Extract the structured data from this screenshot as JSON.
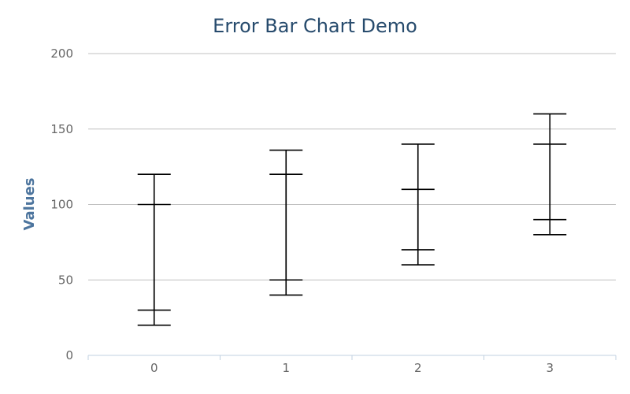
{
  "chart_data": {
    "type": "errorbar",
    "title": "Error Bar Chart Demo",
    "xlabel": "",
    "ylabel": "Values",
    "categories": [
      "0",
      "1",
      "2",
      "3"
    ],
    "ylim": [
      0,
      200
    ],
    "yticks": [
      0,
      50,
      100,
      150,
      200
    ],
    "grid": true,
    "legend": "none",
    "series": [
      {
        "low": [
          20,
          40,
          60,
          80
        ],
        "high": [
          120,
          136,
          140,
          160
        ]
      },
      {
        "low": [
          30,
          50,
          70,
          90
        ],
        "high": [
          100,
          120,
          110,
          140
        ]
      }
    ],
    "colors": {
      "title": "#274b6d",
      "axis_title": "#4d759e",
      "tick_label": "#666666",
      "grid": "#c0c0c0",
      "error_bar": "#000000"
    }
  }
}
